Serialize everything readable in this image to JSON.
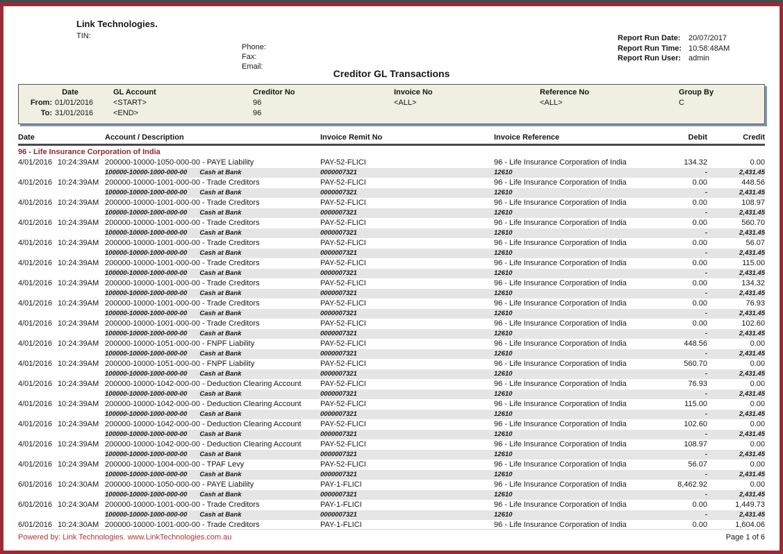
{
  "header": {
    "company": "Link Technologies.",
    "tin_label": "TIN:",
    "contact_labels": [
      "Phone:",
      "Fax:",
      "Email:"
    ],
    "title": "Creditor GL Transactions",
    "report_run": [
      {
        "label": "Report Run Date:",
        "value": "20/07/2017"
      },
      {
        "label": "Report Run Time:",
        "value": "10:58:48AM"
      },
      {
        "label": "Report Run User:",
        "value": "admin"
      }
    ]
  },
  "filters": {
    "headers": [
      "Date",
      "GL Account",
      "Creditor No",
      "Invoice No",
      "Reference No",
      "Group By"
    ],
    "from_label": "From:",
    "to_label": "To:",
    "from": {
      "date": "01/01/2016",
      "gl_account": "<START>",
      "creditor_no": "96",
      "invoice_no": "<ALL>",
      "reference_no": "<ALL>",
      "group_by": "C"
    },
    "to": {
      "date": "31/01/2016",
      "gl_account": "<END>",
      "creditor_no": "96"
    }
  },
  "table": {
    "columns": [
      "Date",
      "Account / Description",
      "Invoice Remit No",
      "Invoice Reference",
      "Debit",
      "Credit"
    ],
    "group_header": "96 - Life Insurance Corporation of India",
    "subline": {
      "account": "100000-10000-1000-000-00",
      "description": "Cash at Bank",
      "remit_no": "0000007321",
      "reference": "12610",
      "debit": "-",
      "credit": "2,431.45"
    },
    "rows": [
      {
        "date": "4/01/2016",
        "time": "10:24:39AM",
        "account": "200000-10000-1050-000-00 - PAYE Liability",
        "remit_no": "PAY-52-FLICI",
        "reference": "96 - Life Insurance Corporation of India",
        "debit": "134.32",
        "credit": "0.00",
        "sub": true
      },
      {
        "date": "4/01/2016",
        "time": "10:24:39AM",
        "account": "200000-10000-1001-000-00 - Trade Creditors",
        "remit_no": "PAY-52-FLICI",
        "reference": "96 - Life Insurance Corporation of India",
        "debit": "0.00",
        "credit": "448.56",
        "sub": true
      },
      {
        "date": "4/01/2016",
        "time": "10:24:39AM",
        "account": "200000-10000-1001-000-00 - Trade Creditors",
        "remit_no": "PAY-52-FLICI",
        "reference": "96 - Life Insurance Corporation of India",
        "debit": "0.00",
        "credit": "108.97",
        "sub": true
      },
      {
        "date": "4/01/2016",
        "time": "10:24:39AM",
        "account": "200000-10000-1001-000-00 - Trade Creditors",
        "remit_no": "PAY-52-FLICI",
        "reference": "96 - Life Insurance Corporation of India",
        "debit": "0.00",
        "credit": "560.70",
        "sub": true
      },
      {
        "date": "4/01/2016",
        "time": "10:24:39AM",
        "account": "200000-10000-1001-000-00 - Trade Creditors",
        "remit_no": "PAY-52-FLICI",
        "reference": "96 - Life Insurance Corporation of India",
        "debit": "0.00",
        "credit": "56.07",
        "sub": true
      },
      {
        "date": "4/01/2016",
        "time": "10:24:39AM",
        "account": "200000-10000-1001-000-00 - Trade Creditors",
        "remit_no": "PAY-52-FLICI",
        "reference": "96 - Life Insurance Corporation of India",
        "debit": "0.00",
        "credit": "115.00",
        "sub": true
      },
      {
        "date": "4/01/2016",
        "time": "10:24:39AM",
        "account": "200000-10000-1001-000-00 - Trade Creditors",
        "remit_no": "PAY-52-FLICI",
        "reference": "96 - Life Insurance Corporation of India",
        "debit": "0.00",
        "credit": "134.32",
        "sub": true
      },
      {
        "date": "4/01/2016",
        "time": "10:24:39AM",
        "account": "200000-10000-1001-000-00 - Trade Creditors",
        "remit_no": "PAY-52-FLICI",
        "reference": "96 - Life Insurance Corporation of India",
        "debit": "0.00",
        "credit": "76.93",
        "sub": true
      },
      {
        "date": "4/01/2016",
        "time": "10:24:39AM",
        "account": "200000-10000-1001-000-00 - Trade Creditors",
        "remit_no": "PAY-52-FLICI",
        "reference": "96 - Life Insurance Corporation of India",
        "debit": "0.00",
        "credit": "102.60",
        "sub": true
      },
      {
        "date": "4/01/2016",
        "time": "10:24:39AM",
        "account": "200000-10000-1051-000-00 - FNPF Liability",
        "remit_no": "PAY-52-FLICI",
        "reference": "96 - Life Insurance Corporation of India",
        "debit": "448.56",
        "credit": "0.00",
        "sub": true
      },
      {
        "date": "4/01/2016",
        "time": "10:24:39AM",
        "account": "200000-10000-1051-000-00 - FNPF Liability",
        "remit_no": "PAY-52-FLICI",
        "reference": "96 - Life Insurance Corporation of India",
        "debit": "560.70",
        "credit": "0.00",
        "sub": true
      },
      {
        "date": "4/01/2016",
        "time": "10:24:39AM",
        "account": "200000-10000-1042-000-00 - Deduction Clearing Account",
        "remit_no": "PAY-52-FLICI",
        "reference": "96 - Life Insurance Corporation of India",
        "debit": "76.93",
        "credit": "0.00",
        "sub": true
      },
      {
        "date": "4/01/2016",
        "time": "10:24:39AM",
        "account": "200000-10000-1042-000-00 - Deduction Clearing Account",
        "remit_no": "PAY-52-FLICI",
        "reference": "96 - Life Insurance Corporation of India",
        "debit": "115.00",
        "credit": "0.00",
        "sub": true
      },
      {
        "date": "4/01/2016",
        "time": "10:24:39AM",
        "account": "200000-10000-1042-000-00 - Deduction Clearing Account",
        "remit_no": "PAY-52-FLICI",
        "reference": "96 - Life Insurance Corporation of India",
        "debit": "102.60",
        "credit": "0.00",
        "sub": true
      },
      {
        "date": "4/01/2016",
        "time": "10:24:39AM",
        "account": "200000-10000-1042-000-00 - Deduction Clearing Account",
        "remit_no": "PAY-52-FLICI",
        "reference": "96 - Life Insurance Corporation of India",
        "debit": "108.97",
        "credit": "0.00",
        "sub": true
      },
      {
        "date": "4/01/2016",
        "time": "10:24:39AM",
        "account": "200000-10000-1004-000-00 - TPAF Levy",
        "remit_no": "PAY-52-FLICI",
        "reference": "96 - Life Insurance Corporation of India",
        "debit": "56.07",
        "credit": "0.00",
        "sub": true
      },
      {
        "date": "6/01/2016",
        "time": "10:24:30AM",
        "account": "200000-10000-1050-000-00 - PAYE Liability",
        "remit_no": "PAY-1-FLICI",
        "reference": "96 - Life Insurance Corporation of India",
        "debit": "8,462.92",
        "credit": "0.00",
        "sub": true
      },
      {
        "date": "6/01/2016",
        "time": "10:24:30AM",
        "account": "200000-10000-1001-000-00 - Trade Creditors",
        "remit_no": "PAY-1-FLICI",
        "reference": "96 - Life Insurance Corporation of India",
        "debit": "0.00",
        "credit": "1,449.73",
        "sub": true
      },
      {
        "date": "6/01/2016",
        "time": "10:24:30AM",
        "account": "200000-10000-1001-000-00 - Trade Creditors",
        "remit_no": "PAY-1-FLICI",
        "reference": "96 - Life Insurance Corporation of India",
        "debit": "0.00",
        "credit": "1,604.06",
        "sub": false
      }
    ]
  },
  "footer": {
    "powered_by": "Powered by: Link Technologies.",
    "url": "www.LinkTechnologies.com.au",
    "page": "Page 1 of 6"
  }
}
